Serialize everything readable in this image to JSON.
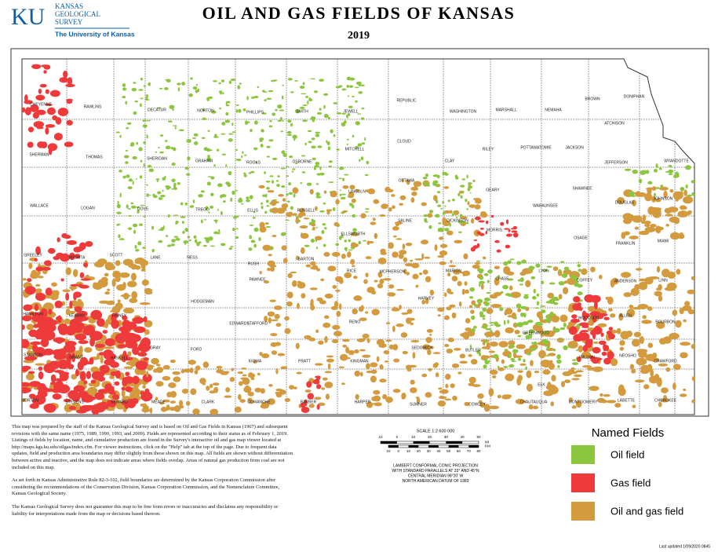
{
  "header": {
    "logo_initials": "KU",
    "logo_lines": [
      "KANSAS",
      "GEOLOGICAL",
      "SURVEY"
    ],
    "logo_university": "The University of Kansas",
    "title": "OIL AND GAS FIELDS OF KANSAS",
    "subtitle": "2019"
  },
  "map": {
    "counties": [
      "CHEYENNE",
      "RAWLINS",
      "DECATUR",
      "NORTON",
      "PHILLIPS",
      "SMITH",
      "JEWELL",
      "REPUBLIC",
      "WASHINGTON",
      "MARSHALL",
      "NEMAHA",
      "BROWN",
      "DONIPHAN",
      "SHERMAN",
      "THOMAS",
      "SHERIDAN",
      "GRAHAM",
      "ROOKS",
      "OSBORNE",
      "MITCHELL",
      "CLOUD",
      "CLAY",
      "RILEY",
      "POTTAWATOMIE",
      "JACKSON",
      "ATCHISON",
      "JEFFERSON",
      "WYANDOTTE",
      "WALLACE",
      "LOGAN",
      "GOVE",
      "TREGO",
      "ELLIS",
      "RUSSELL",
      "LINCOLN",
      "OTTAWA",
      "SALINE",
      "DICKINSON",
      "GEARY",
      "MORRIS",
      "WABAUNSEE",
      "SHAWNEE",
      "DOUGLAS",
      "JOHNSON",
      "GREELEY",
      "WICHITA",
      "SCOTT",
      "LANE",
      "NESS",
      "RUSH",
      "BARTON",
      "ELLSWORTH",
      "RICE",
      "MCPHERSON",
      "MARION",
      "CHASE",
      "LYON",
      "OSAGE",
      "FRANKLIN",
      "MIAMI",
      "HAMILTON",
      "KEARNY",
      "FINNEY",
      "HODGEMAN",
      "PAWNEE",
      "STAFFORD",
      "RENO",
      "HARVEY",
      "BUTLER",
      "GREENWOOD",
      "COFFEY",
      "ANDERSON",
      "LINN",
      "WOODSON",
      "ALLEN",
      "BOURBON",
      "STANTON",
      "GRANT",
      "HASKELL",
      "GRAY",
      "FORD",
      "EDWARDS",
      "KIOWA",
      "PRATT",
      "KINGMAN",
      "SEDGWICK",
      "WILSON",
      "NEOSHO",
      "CRAWFORD",
      "ELK",
      "MORTON",
      "STEVENS",
      "SEWARD",
      "MEADE",
      "CLARK",
      "COMANCHE",
      "BARBER",
      "HARPER",
      "SUMNER",
      "COWLEY",
      "CHAUTAUQUA",
      "MONTGOMERY",
      "LABETTE",
      "CHEROKEE"
    ]
  },
  "notes": {
    "paragraphs": [
      "This map was prepared by the staff of the Kansas Geological Survey and is based on Oil and Gas Fields in Kansas (1967) and subsequent revisions with the same name (1975, 1989, 1990, 1993, and 2009). Fields are represented according to their status as of February 1, 2019. Listings of fields by location, name, and cumulative production are found in the Survey's interactive oil and gas map viewer located at http://maps.kgs.ku.edu/oilgas/index.cfm. For viewer instructions, click on the \"Help\" tab at the top of the page. Due to frequent data updates, field and production area boundaries may differ slightly from those shown on this map. All fields are shown without differentiation between active and inactive, and the map does not indicate areas where fields overlap. Areas of natural gas production from coal are not included on this map.",
      "As set forth in Kansas Administrative Rule 82-3-102, field boundaries are determined by the Kansas Corporation Commission after considering the recommendations of the Conservation Division, Kansas Corporation Commission, and the Nomenclature Committee, Kansas Geological Society.",
      "The Kansas Geological Survey does not guarantee this map to be free from errors or inaccuracies and disclaims any responsibility or liability for interpretations made from the map or decisions based thereon."
    ]
  },
  "scale": {
    "title": "SCALE 1:2 600 000",
    "mile_ticks": [
      10,
      0,
      10,
      20,
      30,
      40,
      50
    ],
    "mile_unit": "MI",
    "km_ticks": [
      10,
      0,
      10,
      20,
      30,
      40,
      50,
      60,
      70,
      80
    ],
    "km_unit": "KM",
    "projection": [
      "LAMBERT CONFORMAL CONIC PROJECTION",
      "WITH STANDARD PARALLELS AT 33° AND 45°N",
      "CENTRAL MERIDIAN 98°20' W",
      "NORTH AMERICAN DATUM OF 1983"
    ]
  },
  "legend": {
    "title": "Named Fields",
    "items": [
      {
        "label": "Oil field",
        "color": "#8cc63f"
      },
      {
        "label": "Gas field",
        "color": "#ee3a3a"
      },
      {
        "label": "Oil and gas field",
        "color": "#d39a3e"
      }
    ]
  },
  "footer": {
    "updated": "Last updated 1/09/2020 0845"
  }
}
